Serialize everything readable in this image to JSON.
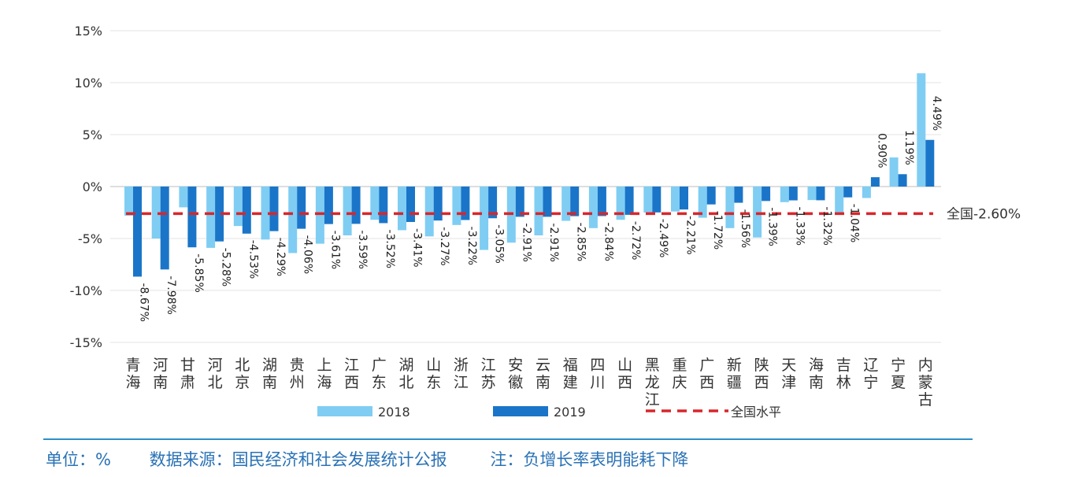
{
  "chart_data": {
    "type": "bar",
    "title": "",
    "xlabel": "",
    "ylabel": "",
    "ylim": [
      -15,
      15
    ],
    "yticks": [
      "15%",
      "10%",
      "5%",
      "0%",
      "-5%",
      "-10%",
      "-15%"
    ],
    "ytick_values": [
      15,
      10,
      5,
      0,
      -5,
      -10,
      -15
    ],
    "grid": true,
    "legend": "bottom",
    "categories": [
      "青海",
      "河南",
      "甘肃",
      "河北",
      "北京",
      "湖南",
      "贵州",
      "上海",
      "江西",
      "广东",
      "湖北",
      "山东",
      "浙江",
      "江苏",
      "安徽",
      "云南",
      "福建",
      "四川",
      "山西",
      "黑龙江",
      "重庆",
      "广西",
      "新疆",
      "陕西",
      "天津",
      "海南",
      "吉林",
      "辽宁",
      "宁夏",
      "内蒙古"
    ],
    "series": [
      {
        "name": "2018",
        "color": "#7fcdf3",
        "values": [
          -2.8,
          -5.0,
          -2.0,
          -5.9,
          -3.8,
          -5.1,
          -6.4,
          -5.5,
          -4.7,
          -3.2,
          -4.2,
          -4.8,
          -3.7,
          -6.1,
          -5.4,
          -4.7,
          -3.3,
          -4.0,
          -3.2,
          -2.5,
          -2.4,
          -3.0,
          -4.0,
          -4.9,
          -1.5,
          -1.3,
          -2.5,
          -1.1,
          2.8,
          10.9
        ]
      },
      {
        "name": "2019",
        "color": "#1a75c9",
        "values": [
          -8.67,
          -7.98,
          -5.85,
          -5.28,
          -4.53,
          -4.29,
          -4.06,
          -3.61,
          -3.59,
          -3.52,
          -3.41,
          -3.27,
          -3.22,
          -3.05,
          -2.91,
          -2.91,
          -2.85,
          -2.84,
          -2.72,
          -2.49,
          -2.21,
          -1.72,
          -1.56,
          -1.39,
          -1.33,
          -1.32,
          -1.04,
          0.9,
          1.19,
          4.49
        ],
        "labels": [
          "-8.67%",
          "-7.98%",
          "-5.85%",
          "-5.28%",
          "-4.53%",
          "-4.29%",
          "-4.06%",
          "-3.61%",
          "-3.59%",
          "-3.52%",
          "-3.41%",
          "-3.27%",
          "-3.22%",
          "-3.05%",
          "-2.91%",
          "-2.91%",
          "-2.85%",
          "-2.84%",
          "-2.72%",
          "-2.49%",
          "-2.21%",
          "-1.72%",
          "-1.56%",
          "-1.39%",
          "-1.33%",
          "-1.32%",
          "-1.04%",
          "0.90%",
          "1.19%",
          "4.49%"
        ]
      }
    ],
    "national": {
      "name": "全国水平",
      "value": -2.6,
      "label": "全国-2.60%",
      "color": "#d8262b"
    }
  },
  "footer": {
    "unit": "单位：%",
    "source": "数据来源：国民经济和社会发展统计公报",
    "note": "注：负增长率表明能耗下降"
  }
}
